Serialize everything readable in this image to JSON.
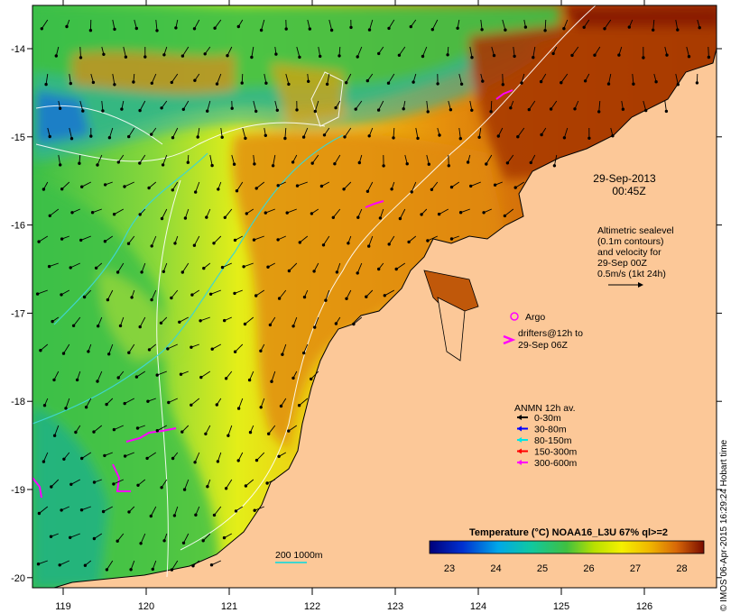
{
  "map": {
    "lon_ticks": [
      "119",
      "120",
      "121",
      "122",
      "123",
      "124",
      "125",
      "126"
    ],
    "lat_ticks": [
      "-14",
      "-15",
      "-16",
      "-17",
      "-18",
      "-19",
      "-20"
    ]
  },
  "labels": {
    "date": "29-Sep-2013",
    "time": "00:45Z",
    "altimetry": [
      "Altimetric sealevel",
      "(0.1m contours)",
      "and velocity for",
      "29-Sep 00Z",
      "0.5m/s (1kt 24h)"
    ],
    "argo": "Argo",
    "drifters": [
      "drifters@12h to",
      "29-Sep 06Z"
    ],
    "anmn_title": "ANMN 12h av.",
    "depth_scale": "200  1000m",
    "credit": "© IMOS 06-Apr-2015 16:29:24 Hobart time"
  },
  "anmn_legend": [
    {
      "label": "0-30m",
      "color": "#000000"
    },
    {
      "label": "30-80m",
      "color": "#0000ff"
    },
    {
      "label": "80-150m",
      "color": "#00e5e5"
    },
    {
      "label": "150-300m",
      "color": "#ff0000"
    },
    {
      "label": "300-600m",
      "color": "#ff00ff"
    }
  ],
  "colorbar": {
    "title": "Temperature (°C) NOAA16_L3U 67% ql>=2",
    "ticks": [
      "23",
      "24",
      "25",
      "26",
      "27",
      "28"
    ]
  },
  "colors": {
    "land": "#fcc898",
    "warm": "#b84a08",
    "ocean_green": "#3fc44a",
    "argo": "#ff00ff",
    "drifter": "#ff00ff"
  }
}
